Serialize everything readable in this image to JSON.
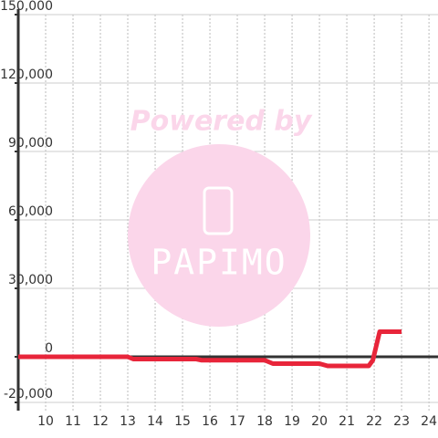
{
  "chart_data": {
    "type": "line",
    "x": [
      9,
      13,
      13.2,
      15.5,
      15.7,
      18,
      18.3,
      20,
      20.3,
      21.8,
      21.95,
      22.2,
      23
    ],
    "series": [
      {
        "color": "#e8253a",
        "values": [
          0,
          0,
          -1000,
          -1000,
          -1500,
          -1500,
          -3000,
          -3000,
          -4000,
          -4000,
          -1500,
          11000,
          11000
        ]
      }
    ],
    "xlim": [
      9,
      24.33
    ],
    "xticks": [
      10,
      11,
      12,
      13,
      14,
      15,
      16,
      17,
      18,
      19,
      20,
      21,
      22,
      23,
      24
    ],
    "ylim": [
      -23600,
      150000
    ],
    "yticks": [
      {
        "value": -20000,
        "label": "-20,000"
      },
      0,
      {
        "value": 30000,
        "label": "30,000"
      },
      {
        "value": 60000,
        "label": "60,000"
      },
      {
        "value": 90000,
        "label": "90,000"
      },
      {
        "value": 120000,
        "label": "120,000"
      },
      {
        "value": 150000,
        "label": "150,000"
      }
    ],
    "grid": true,
    "watermark": {
      "text": "Powered by",
      "logo": "PAPIMO"
    }
  }
}
